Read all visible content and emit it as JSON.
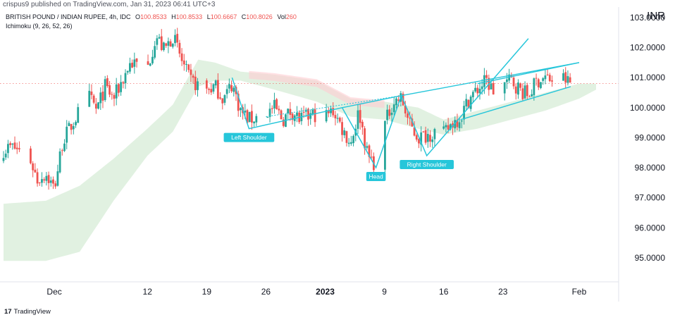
{
  "header": {
    "published": "crispus9 published on TradingView.com, Jan 31, 2023 06:41 UTC+3",
    "symbol": "BRITISH POUND / INDIAN RUPEE, 4h, IDC",
    "ohlc": {
      "open_label": "O",
      "open": "100.8533",
      "high_label": "H",
      "high": "100.8533",
      "low_label": "L",
      "low": "100.6667",
      "close_label": "C",
      "close": "100.8026",
      "vol_label": "Vol",
      "vol": "260"
    },
    "indicator": "Ichimoku (9, 26, 52, 26)",
    "currency": "INR"
  },
  "footer": {
    "logo": "17",
    "brand": "TradingView"
  },
  "colors": {
    "up": "#26a69a",
    "down": "#ef5350",
    "pattern": "#26c6da",
    "cloud_green": "#c8e6c9",
    "cloud_red": "#ffcdd2"
  },
  "chart_data": {
    "type": "candlestick",
    "title": "BRITISH POUND / INDIAN RUPEE, 4h, IDC",
    "ylabel": "INR",
    "ylim": [
      94.2,
      103.35
    ],
    "y_ticks": [
      "103.0000",
      "102.0000",
      "101.0000",
      "100.0000",
      "99.0000",
      "98.0000",
      "97.0000",
      "96.0000",
      "95.0000"
    ],
    "y_tick_values": [
      103,
      102,
      101,
      100,
      99,
      98,
      97,
      96,
      95
    ],
    "x_ticks": [
      {
        "label": "Dec",
        "date": "2022-12-01",
        "bold": false
      },
      {
        "label": "12",
        "date": "2022-12-12",
        "bold": false
      },
      {
        "label": "19",
        "date": "2022-12-19",
        "bold": false
      },
      {
        "label": "26",
        "date": "2022-12-26",
        "bold": false
      },
      {
        "label": "2023",
        "date": "2023-01-02",
        "bold": true
      },
      {
        "label": "9",
        "date": "2023-01-09",
        "bold": false
      },
      {
        "label": "16",
        "date": "2023-01-16",
        "bold": false
      },
      {
        "label": "23",
        "date": "2023-01-23",
        "bold": false
      },
      {
        "label": "Feb",
        "date": "2023-02-01",
        "bold": false
      }
    ],
    "close_path": [
      [
        "2022-11-25",
        98.6
      ],
      [
        "2022-11-26",
        98.7
      ],
      [
        "2022-11-28",
        98.4
      ],
      [
        "2022-11-29",
        97.6
      ],
      [
        "2022-11-30",
        97.8
      ],
      [
        "2022-12-01",
        97.3
      ],
      [
        "2022-12-02",
        98.9
      ],
      [
        "2022-12-04",
        99.9
      ],
      [
        "2022-12-05",
        100.4
      ],
      [
        "2022-12-06",
        99.9
      ],
      [
        "2022-12-07",
        100.7
      ],
      [
        "2022-12-08",
        100.3
      ],
      [
        "2022-12-09",
        100.9
      ],
      [
        "2022-12-10",
        101.5
      ],
      [
        "2022-12-12",
        101.3
      ],
      [
        "2022-12-13",
        102.4
      ],
      [
        "2022-12-14",
        101.9
      ],
      [
        "2022-12-15",
        102.4
      ],
      [
        "2022-12-16",
        101.6
      ],
      [
        "2022-12-17",
        100.9
      ],
      [
        "2022-12-19",
        100.6
      ],
      [
        "2022-12-20",
        100.7
      ],
      [
        "2022-12-21",
        100.3
      ],
      [
        "2022-12-22",
        100.8
      ],
      [
        "2022-12-23",
        99.9
      ],
      [
        "2022-12-24",
        99.6
      ],
      [
        "2022-12-26",
        99.8
      ],
      [
        "2022-12-27",
        100.0
      ],
      [
        "2022-12-28",
        99.6
      ],
      [
        "2022-12-29",
        99.9
      ],
      [
        "2022-12-30",
        99.6
      ],
      [
        "2023-01-01",
        99.8
      ],
      [
        "2023-01-02",
        99.7
      ],
      [
        "2023-01-03",
        99.9
      ],
      [
        "2023-01-04",
        99.3
      ],
      [
        "2023-01-05",
        98.8
      ],
      [
        "2023-01-06",
        99.9
      ],
      [
        "2023-01-07",
        98.4
      ],
      [
        "2023-01-08",
        98.1
      ],
      [
        "2023-01-09",
        99.4
      ],
      [
        "2023-01-10",
        100.2
      ],
      [
        "2023-01-11",
        100.3
      ],
      [
        "2023-01-12",
        99.4
      ],
      [
        "2023-01-13",
        99.0
      ],
      [
        "2023-01-14",
        99.1
      ],
      [
        "2023-01-15",
        99.2
      ],
      [
        "2023-01-16",
        99.1
      ],
      [
        "2023-01-17",
        99.5
      ],
      [
        "2023-01-18",
        99.7
      ],
      [
        "2023-01-19",
        100.3
      ],
      [
        "2023-01-20",
        100.6
      ],
      [
        "2023-01-21",
        100.9
      ],
      [
        "2023-01-22",
        100.5
      ],
      [
        "2023-01-23",
        100.8
      ],
      [
        "2023-01-24",
        100.9
      ],
      [
        "2023-01-25",
        100.6
      ],
      [
        "2023-01-26",
        100.4
      ],
      [
        "2023-01-27",
        100.9
      ],
      [
        "2023-01-28",
        101.0
      ],
      [
        "2023-01-29",
        100.9
      ],
      [
        "2023-01-30",
        101.0
      ],
      [
        "2023-01-31",
        100.8
      ]
    ],
    "last_price": 100.8026,
    "ichimoku_cloud": {
      "upper": [
        [
          "2022-11-25",
          96.8
        ],
        [
          "2022-11-30",
          96.9
        ],
        [
          "2022-12-04",
          97.4
        ],
        [
          "2022-12-08",
          98.3
        ],
        [
          "2022-12-12",
          99.3
        ],
        [
          "2022-12-15",
          100.1
        ],
        [
          "2022-12-18",
          101.6
        ],
        [
          "2022-12-20",
          101.5
        ],
        [
          "2022-12-23",
          101.2
        ],
        [
          "2022-12-27",
          101.1
        ],
        [
          "2023-01-01",
          100.9
        ],
        [
          "2023-01-05",
          100.3
        ],
        [
          "2023-01-09",
          100.2
        ],
        [
          "2023-01-13",
          100.0
        ],
        [
          "2023-01-16",
          99.6
        ],
        [
          "2023-01-20",
          99.9
        ],
        [
          "2023-01-24",
          100.2
        ],
        [
          "2023-01-28",
          100.5
        ],
        [
          "2023-02-01",
          100.8
        ],
        [
          "2023-02-03",
          100.8
        ]
      ],
      "lower": [
        [
          "2022-11-25",
          94.9
        ],
        [
          "2022-11-30",
          94.9
        ],
        [
          "2022-12-04",
          95.2
        ],
        [
          "2022-12-08",
          96.9
        ],
        [
          "2022-12-12",
          98.4
        ],
        [
          "2022-12-15",
          99.2
        ],
        [
          "2022-12-18",
          100.7
        ],
        [
          "2022-12-20",
          100.9
        ],
        [
          "2022-12-23",
          100.9
        ],
        [
          "2022-12-27",
          100.6
        ],
        [
          "2023-01-01",
          100.2
        ],
        [
          "2023-01-05",
          99.7
        ],
        [
          "2023-01-09",
          99.6
        ],
        [
          "2023-01-13",
          99.3
        ],
        [
          "2023-01-16",
          99.1
        ],
        [
          "2023-01-20",
          99.3
        ],
        [
          "2023-01-24",
          99.6
        ],
        [
          "2023-01-28",
          99.9
        ],
        [
          "2023-02-01",
          100.3
        ],
        [
          "2023-02-03",
          100.6
        ]
      ],
      "bearish_span": [
        [
          "2022-12-24",
          "2023-01-09"
        ]
      ]
    },
    "pattern": {
      "name": "inverse head and shoulders",
      "points": [
        {
          "date": "2022-12-22",
          "value": 101.0
        },
        {
          "date": "2022-12-24",
          "value": 99.3
        },
        {
          "date": "2023-01-04",
          "value": 100.0
        },
        {
          "date": "2023-01-08",
          "value": 98.0
        },
        {
          "date": "2023-01-11",
          "value": 100.4
        },
        {
          "date": "2023-01-14",
          "value": 98.4
        },
        {
          "date": "2023-01-18",
          "value": 99.7
        },
        {
          "date": "2023-01-26",
          "value": 102.3
        }
      ],
      "labels": [
        {
          "text": "Left Shoulder",
          "date": "2022-12-24",
          "value": 99.3
        },
        {
          "text": "Head",
          "date": "2023-01-08",
          "value": 98.0
        },
        {
          "text": "Right Shoulder",
          "date": "2023-01-14",
          "value": 98.4
        }
      ],
      "neckline": [
        [
          "2023-01-04",
          100.0
        ],
        [
          "2023-01-11",
          100.4
        ]
      ],
      "neckline_dotted": [
        [
          "2022-12-26",
          99.7
        ],
        [
          "2023-01-11",
          100.4
        ]
      ],
      "upper_trendline": [
        [
          "2023-01-11",
          100.4
        ],
        [
          "2023-02-01",
          101.5
        ]
      ],
      "channel_upper": [
        [
          "2023-01-20",
          100.8
        ],
        [
          "2023-02-01",
          101.5
        ]
      ],
      "channel_lower": [
        [
          "2023-01-18",
          99.6
        ],
        [
          "2023-01-31",
          100.7
        ]
      ]
    }
  }
}
